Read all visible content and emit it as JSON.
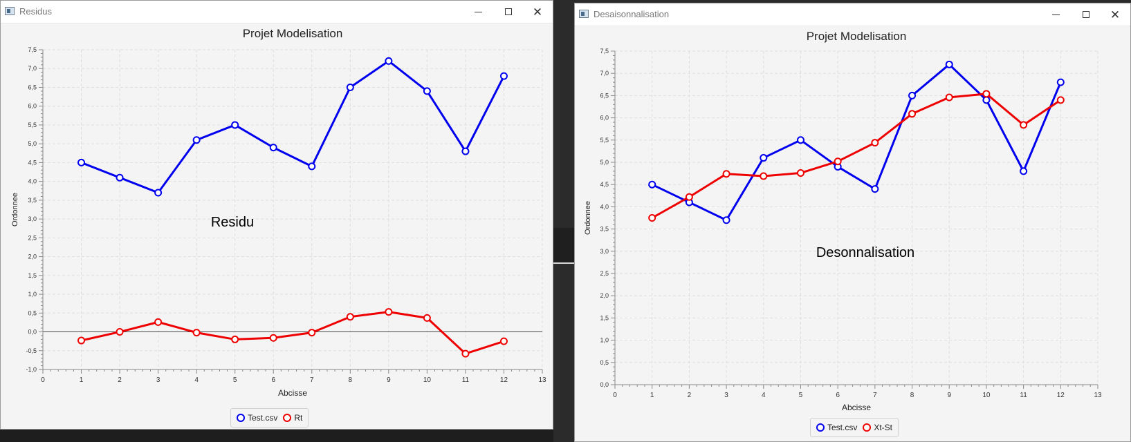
{
  "windows": [
    {
      "title": "Residus",
      "chart_title": "Projet Modelisation",
      "annotation": "Residu",
      "legend": [
        {
          "label": "Test.csv",
          "color": "#0000ee"
        },
        {
          "label": "Rt",
          "color": "#ee0000"
        }
      ]
    },
    {
      "title": "Desaisonnalisation",
      "chart_title": "Projet Modelisation",
      "annotation": "Desonnalisation",
      "legend": [
        {
          "label": "Test.csv",
          "color": "#0000ee"
        },
        {
          "label": "Xt-St",
          "color": "#ee0000"
        }
      ]
    }
  ],
  "chart_data": [
    {
      "type": "line",
      "title": "Projet Modelisation",
      "annotation": "Residu",
      "xlabel": "Abcisse",
      "ylabel": "Ordonnee",
      "xlim": [
        0,
        13
      ],
      "ylim": [
        -1.0,
        7.5
      ],
      "x_ticks": [
        "0",
        "1",
        "2",
        "3",
        "4",
        "5",
        "6",
        "7",
        "8",
        "9",
        "10",
        "11",
        "12",
        "13"
      ],
      "y_ticks": [
        "-1,0",
        "-0,5",
        "0,0",
        "0,5",
        "1,0",
        "1,5",
        "2,0",
        "2,5",
        "3,0",
        "3,5",
        "4,0",
        "4,5",
        "5,0",
        "5,5",
        "6,0",
        "6,5",
        "7,0",
        "7,5"
      ],
      "grid": true,
      "zero_line": true,
      "legend_position": "bottom",
      "x": [
        1,
        2,
        3,
        4,
        5,
        6,
        7,
        8,
        9,
        10,
        11,
        12
      ],
      "series": [
        {
          "name": "Test.csv",
          "color": "#0000ee",
          "values": [
            4.5,
            4.1,
            3.7,
            5.1,
            5.5,
            4.9,
            4.4,
            6.5,
            7.2,
            6.4,
            4.8,
            6.8
          ]
        },
        {
          "name": "Rt",
          "color": "#ee0000",
          "values": [
            -0.23,
            0.0,
            0.26,
            -0.02,
            -0.2,
            -0.16,
            -0.02,
            0.4,
            0.53,
            0.37,
            -0.58,
            -0.25
          ]
        }
      ]
    },
    {
      "type": "line",
      "title": "Projet Modelisation",
      "annotation": "Desonnalisation",
      "xlabel": "Abcisse",
      "ylabel": "Ordonnee",
      "xlim": [
        0,
        13
      ],
      "ylim": [
        0.0,
        7.5
      ],
      "x_ticks": [
        "0",
        "1",
        "2",
        "3",
        "4",
        "5",
        "6",
        "7",
        "8",
        "9",
        "10",
        "11",
        "12",
        "13"
      ],
      "y_ticks": [
        "0,0",
        "0,5",
        "1,0",
        "1,5",
        "2,0",
        "2,5",
        "3,0",
        "3,5",
        "4,0",
        "4,5",
        "5,0",
        "5,5",
        "6,0",
        "6,5",
        "7,0",
        "7,5"
      ],
      "grid": true,
      "zero_line": false,
      "legend_position": "bottom",
      "x": [
        1,
        2,
        3,
        4,
        5,
        6,
        7,
        8,
        9,
        10,
        11,
        12
      ],
      "series": [
        {
          "name": "Test.csv",
          "color": "#0000ee",
          "values": [
            4.5,
            4.1,
            3.7,
            5.1,
            5.5,
            4.9,
            4.4,
            6.5,
            7.2,
            6.4,
            4.8,
            6.8
          ]
        },
        {
          "name": "Xt-St",
          "color": "#ee0000",
          "values": [
            3.75,
            4.22,
            4.74,
            4.69,
            4.76,
            5.02,
            5.44,
            6.09,
            6.46,
            6.54,
            5.84,
            6.4
          ]
        }
      ]
    }
  ]
}
